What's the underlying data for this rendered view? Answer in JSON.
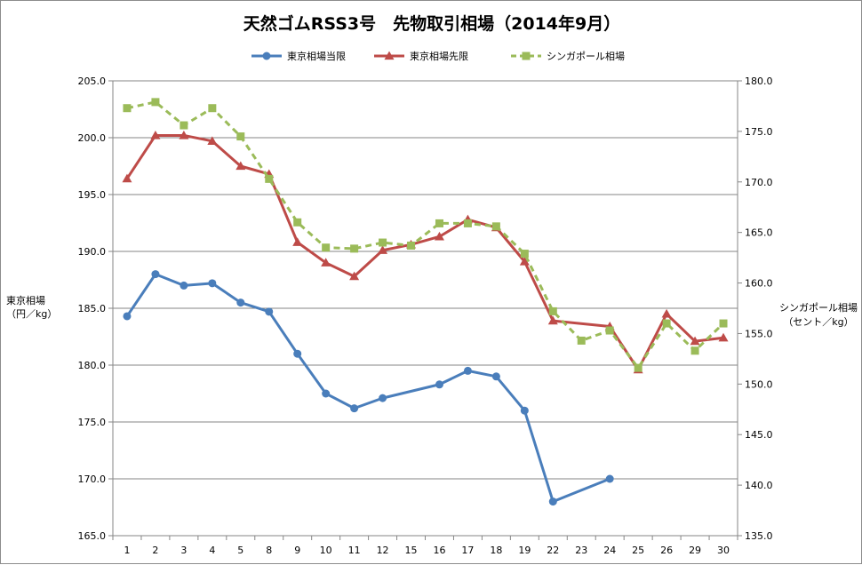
{
  "chart_data": {
    "type": "line",
    "title": "天然ゴムRSS3号　先物取引相場（2014年9月）",
    "categories": [
      "1",
      "2",
      "3",
      "4",
      "5",
      "8",
      "9",
      "10",
      "11",
      "12",
      "15",
      "16",
      "17",
      "18",
      "19",
      "22",
      "23",
      "24",
      "25",
      "26",
      "29",
      "30"
    ],
    "y_left": {
      "label_lines": [
        "東京相場",
        "（円／kg）"
      ],
      "range": [
        165.0,
        205.0
      ],
      "ticks": [
        "165.0",
        "170.0",
        "175.0",
        "180.0",
        "185.0",
        "190.0",
        "195.0",
        "200.0",
        "205.0"
      ]
    },
    "y_right": {
      "label_lines": [
        "シンガポール相場",
        "（セント／kg）"
      ],
      "range": [
        135.0,
        180.0
      ],
      "ticks": [
        "135.0",
        "140.0",
        "145.0",
        "150.0",
        "155.0",
        "160.0",
        "165.0",
        "170.0",
        "175.0",
        "180.0"
      ]
    },
    "grid": true,
    "legend_position": "top",
    "series": [
      {
        "name": "東京相場当限",
        "axis": "left",
        "color": "#4a7ebb",
        "marker": "circle",
        "dash": false,
        "values": [
          184.3,
          188.0,
          187.0,
          187.2,
          185.5,
          184.7,
          181.0,
          177.5,
          176.2,
          177.1,
          null,
          178.3,
          179.5,
          179.0,
          176.0,
          168.0,
          null,
          170.0,
          null,
          null,
          null,
          null
        ]
      },
      {
        "name": "東京相場先限",
        "axis": "left",
        "color": "#be4b48",
        "marker": "triangle",
        "dash": false,
        "values": [
          196.4,
          200.2,
          200.2,
          199.7,
          197.5,
          196.8,
          190.8,
          189.0,
          187.8,
          190.1,
          190.6,
          191.3,
          192.8,
          192.1,
          189.1,
          183.9,
          null,
          183.4,
          179.6,
          184.5,
          182.1,
          182.4
        ]
      },
      {
        "name": "シンガポール相場",
        "axis": "right",
        "color": "#9bbb59",
        "marker": "square",
        "dash": true,
        "values": [
          177.3,
          177.9,
          175.6,
          177.3,
          174.5,
          170.3,
          166.0,
          163.5,
          163.4,
          164.0,
          163.7,
          165.9,
          165.9,
          165.6,
          162.9,
          157.2,
          154.3,
          155.3,
          151.6,
          156.0,
          153.3,
          156.0
        ]
      }
    ]
  }
}
